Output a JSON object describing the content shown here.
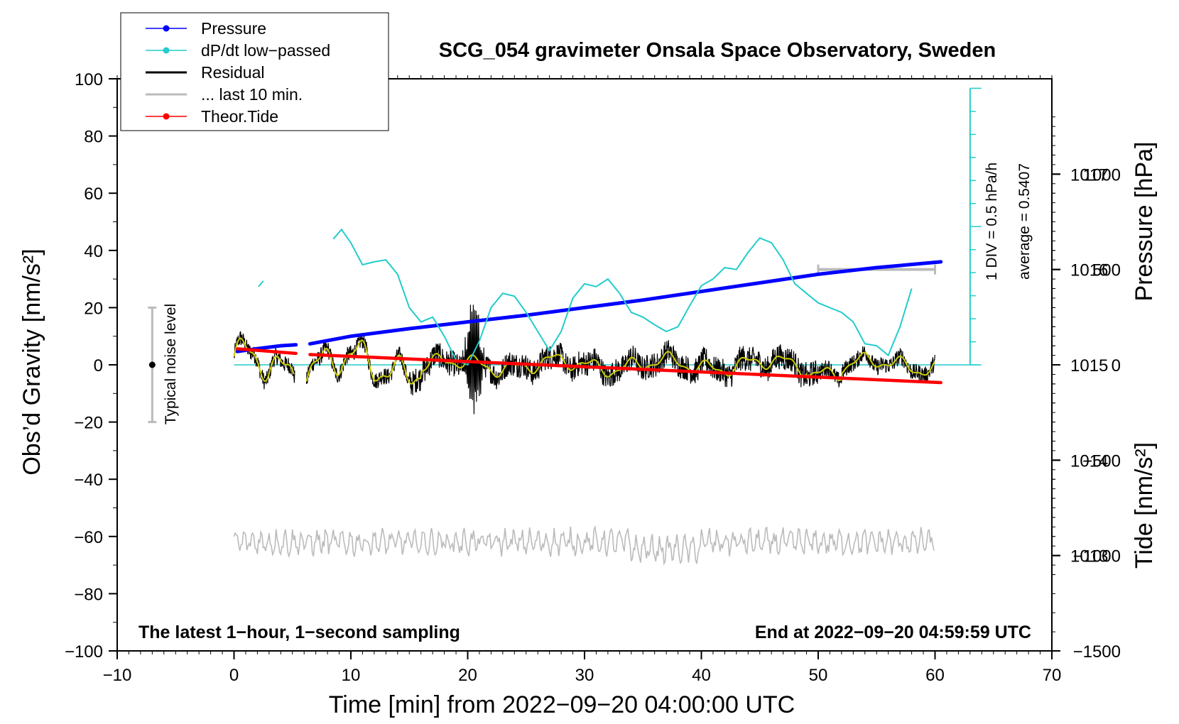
{
  "chart_data": {
    "type": "line",
    "title": "SCG_054 gravimeter Onsala Space Observatory, Sweden",
    "xlabel": "Time [min] from 2022−09−20 04:00:00 UTC",
    "ylabel_left": "Obs’d Gravity [nm/s²]",
    "ylabel_right_top": "Pressure [hPa]",
    "ylabel_right_bottom": "Tide [nm/s²]",
    "xlim": [
      -10,
      70
    ],
    "ylim": [
      -100,
      100
    ],
    "pressure_lim": [
      1012.0,
      1018.0
    ],
    "tide_lim": [
      -1500,
      1500
    ],
    "x_ticks": [
      "−10",
      "0",
      "10",
      "20",
      "30",
      "40",
      "50",
      "60",
      "70"
    ],
    "x_tick_values": [
      -10,
      0,
      10,
      20,
      30,
      40,
      50,
      60,
      70
    ],
    "y_ticks": [
      "100",
      "80",
      "60",
      "40",
      "20",
      "0",
      "−20",
      "−40",
      "−60",
      "−80",
      "−100"
    ],
    "y_tick_values": [
      100,
      80,
      60,
      40,
      20,
      0,
      -20,
      -40,
      -60,
      -80,
      -100
    ],
    "pressure_ticks": [
      "1017",
      "1016",
      "1015",
      "1014",
      "1013"
    ],
    "pressure_tick_values": [
      1017,
      1016,
      1015,
      1014,
      1013
    ],
    "tide_ticks": [
      "1000",
      "500",
      "0",
      "−500",
      "−1000",
      "−1500"
    ],
    "tide_tick_values": [
      1000,
      500,
      0,
      -500,
      -1000,
      -1500
    ],
    "legend": {
      "position": "top-left",
      "entries": [
        {
          "label": "Pressure",
          "color": "#0000ff",
          "marker": true
        },
        {
          "label": "dP/dt low−passed",
          "color": "#22cccc",
          "marker": true
        },
        {
          "label": "Residual",
          "color": "#000000",
          "marker": false
        },
        {
          "label": "... last 10 min.",
          "color": "#bbbbbb",
          "marker": false
        },
        {
          "label": "Theor.Tide",
          "color": "#ff0000",
          "marker": true
        }
      ]
    },
    "series": [
      {
        "name": "Pressure",
        "axis": "pressure",
        "color": "#0000ff",
        "x": [
          0.3,
          2,
          4,
          5.3,
          6.5,
          10,
          15,
          20,
          25,
          30,
          35,
          40,
          45,
          50,
          55,
          60.5
        ],
        "y": [
          1015.14,
          1015.17,
          1015.2,
          1015.21,
          1015.22,
          1015.3,
          1015.38,
          1015.45,
          1015.52,
          1015.6,
          1015.68,
          1015.77,
          1015.86,
          1015.95,
          1016.02,
          1016.08
        ]
      },
      {
        "name": "dP/dt low−passed",
        "axis": "pressure",
        "color": "#22cccc",
        "x": [
          8.5,
          9.2,
          10,
          11,
          12,
          13,
          14,
          15,
          16,
          17,
          18,
          19,
          20,
          21,
          22,
          23,
          24,
          25,
          26,
          27,
          28,
          29,
          30,
          31,
          32,
          33,
          34,
          35,
          36,
          37,
          38,
          39,
          40,
          41,
          42,
          43,
          44,
          45,
          46,
          47,
          48,
          49,
          50,
          51,
          52,
          53,
          54,
          55,
          56,
          57,
          58
        ],
        "y": [
          1016.32,
          1016.42,
          1016.28,
          1016.05,
          1016.08,
          1016.1,
          1015.95,
          1015.6,
          1015.45,
          1015.5,
          1015.3,
          1015.05,
          1015.0,
          1015.25,
          1015.6,
          1015.75,
          1015.72,
          1015.55,
          1015.35,
          1015.15,
          1015.35,
          1015.7,
          1015.85,
          1015.82,
          1015.9,
          1015.75,
          1015.55,
          1015.5,
          1015.42,
          1015.35,
          1015.4,
          1015.62,
          1015.83,
          1015.9,
          1016.02,
          1016.0,
          1016.18,
          1016.33,
          1016.28,
          1016.1,
          1015.85,
          1015.75,
          1015.65,
          1015.6,
          1015.55,
          1015.45,
          1015.22,
          1015.2,
          1015.1,
          1015.4,
          1015.8
        ]
      },
      {
        "name": "Residual",
        "axis": "gravity",
        "color": "#000000",
        "note": "noisy 1-s residual around 0 nm/s², burst to ±20 near 20.5 min"
      },
      {
        "name": "Residual smoothed",
        "axis": "gravity",
        "color": "#cccc00"
      },
      {
        "name": "... last 10 min.",
        "axis": "gravity",
        "color": "#bbbbbb",
        "note": "oscillation around −62 nm/s² (offset display)"
      },
      {
        "name": "Theor.Tide",
        "axis": "tide",
        "color": "#ff0000",
        "x": [
          0.3,
          5.3,
          6.5,
          60.5
        ],
        "y": [
          84,
          60,
          54,
          -93
        ]
      }
    ],
    "annotations": {
      "noise_label": "Typical noise level",
      "noise_range": [
        -20,
        20
      ],
      "noise_x": -7,
      "div_label": "1 DIV = 0.5 hPa/h",
      "average_label": "average = 0.5407",
      "bottom_left": "The latest 1−hour, 1−second sampling",
      "bottom_right": "End at 2022−09−20 04:59:59 UTC",
      "last10_bar_x": [
        50,
        60
      ],
      "last10_bar_tide": 500
    }
  }
}
